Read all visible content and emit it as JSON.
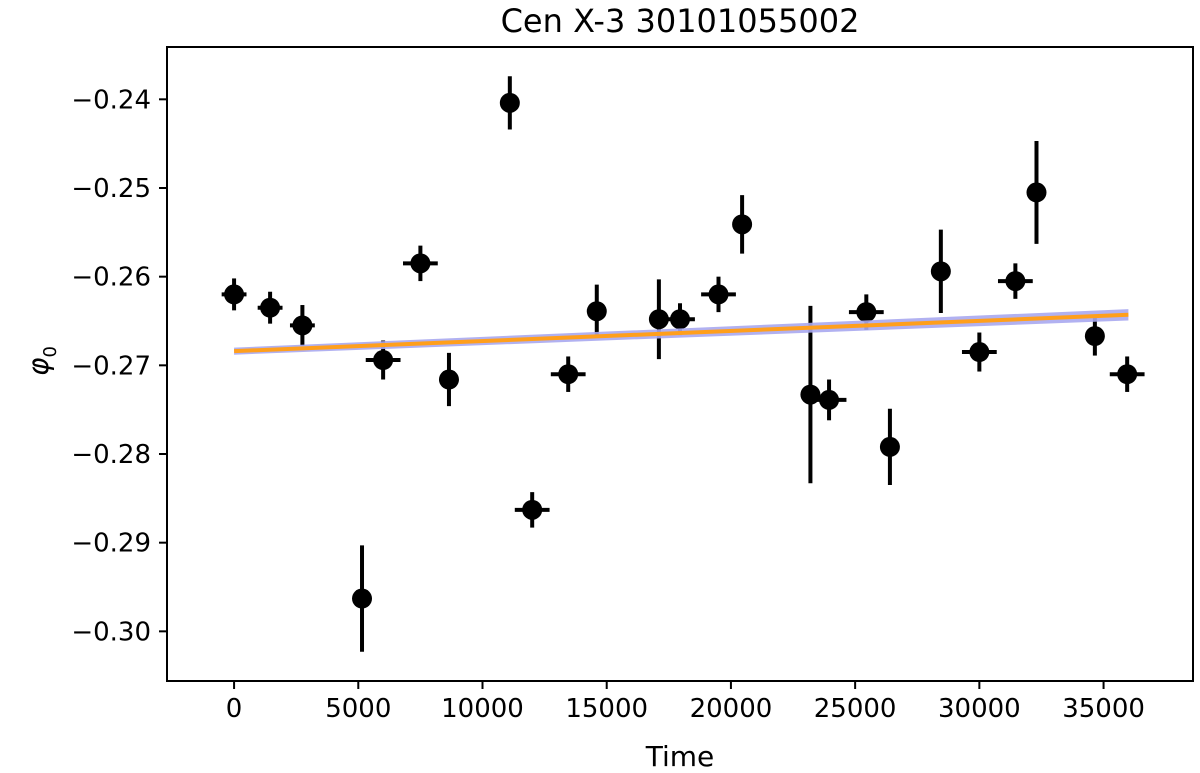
{
  "chart_data": {
    "type": "scatter",
    "title": "Cen X-3 30101055002",
    "xlabel": "Time",
    "ylabel": "φ",
    "ylabel_subscript": "0",
    "xlim": [
      -2700,
      38600
    ],
    "ylim": [
      -0.3056,
      -0.2341
    ],
    "xticks": [
      0,
      5000,
      10000,
      15000,
      20000,
      25000,
      30000,
      35000
    ],
    "xtick_labels": [
      "0",
      "5000",
      "10000",
      "15000",
      "20000",
      "25000",
      "30000",
      "35000"
    ],
    "yticks": [
      -0.24,
      -0.25,
      -0.26,
      -0.27,
      -0.28,
      -0.29,
      -0.3
    ],
    "ytick_labels": [
      "−0.24",
      "−0.25",
      "−0.26",
      "−0.27",
      "−0.28",
      "−0.29",
      "−0.30"
    ],
    "grid": false,
    "marker_color": "#000000",
    "fit_color": "#ff9f1c",
    "band_color": "#a9a9f0",
    "points": [
      {
        "x": 0,
        "y": -0.262,
        "xerr": 500,
        "yerr": 0.0018
      },
      {
        "x": 1450,
        "y": -0.2635,
        "xerr": 500,
        "yerr": 0.0018
      },
      {
        "x": 2750,
        "y": -0.2655,
        "xerr": 500,
        "yerr": 0.0023
      },
      {
        "x": 5150,
        "y": -0.2963,
        "xerr": 0,
        "yerr": 0.006
      },
      {
        "x": 6000,
        "y": -0.2694,
        "xerr": 700,
        "yerr": 0.0022
      },
      {
        "x": 7500,
        "y": -0.2585,
        "xerr": 700,
        "yerr": 0.002
      },
      {
        "x": 8650,
        "y": -0.2716,
        "xerr": 0,
        "yerr": 0.003
      },
      {
        "x": 11100,
        "y": -0.2404,
        "xerr": 0,
        "yerr": 0.003
      },
      {
        "x": 12000,
        "y": -0.2863,
        "xerr": 700,
        "yerr": 0.002
      },
      {
        "x": 13450,
        "y": -0.271,
        "xerr": 700,
        "yerr": 0.002
      },
      {
        "x": 14600,
        "y": -0.2639,
        "xerr": 0,
        "yerr": 0.003
      },
      {
        "x": 17100,
        "y": -0.2648,
        "xerr": 0,
        "yerr": 0.0045
      },
      {
        "x": 17950,
        "y": -0.2648,
        "xerr": 600,
        "yerr": 0.0018
      },
      {
        "x": 19500,
        "y": -0.262,
        "xerr": 700,
        "yerr": 0.002
      },
      {
        "x": 20450,
        "y": -0.2541,
        "xerr": 0,
        "yerr": 0.0033
      },
      {
        "x": 23200,
        "y": -0.2733,
        "xerr": 0,
        "yerr": 0.01
      },
      {
        "x": 23950,
        "y": -0.2739,
        "xerr": 700,
        "yerr": 0.0023
      },
      {
        "x": 25450,
        "y": -0.264,
        "xerr": 700,
        "yerr": 0.002
      },
      {
        "x": 26400,
        "y": -0.2792,
        "xerr": 0,
        "yerr": 0.0043
      },
      {
        "x": 28450,
        "y": -0.2594,
        "xerr": 0,
        "yerr": 0.0047
      },
      {
        "x": 30000,
        "y": -0.2685,
        "xerr": 700,
        "yerr": 0.0022
      },
      {
        "x": 31450,
        "y": -0.2605,
        "xerr": 700,
        "yerr": 0.002
      },
      {
        "x": 32300,
        "y": -0.2505,
        "xerr": 0,
        "yerr": 0.0058
      },
      {
        "x": 34650,
        "y": -0.2667,
        "xerr": 300,
        "yerr": 0.0022
      },
      {
        "x": 35950,
        "y": -0.271,
        "xerr": 700,
        "yerr": 0.002
      }
    ],
    "fit_line": {
      "x": [
        0,
        36000
      ],
      "y": [
        -0.2684,
        -0.2643
      ],
      "band_halfwidth": 0.0004
    }
  }
}
